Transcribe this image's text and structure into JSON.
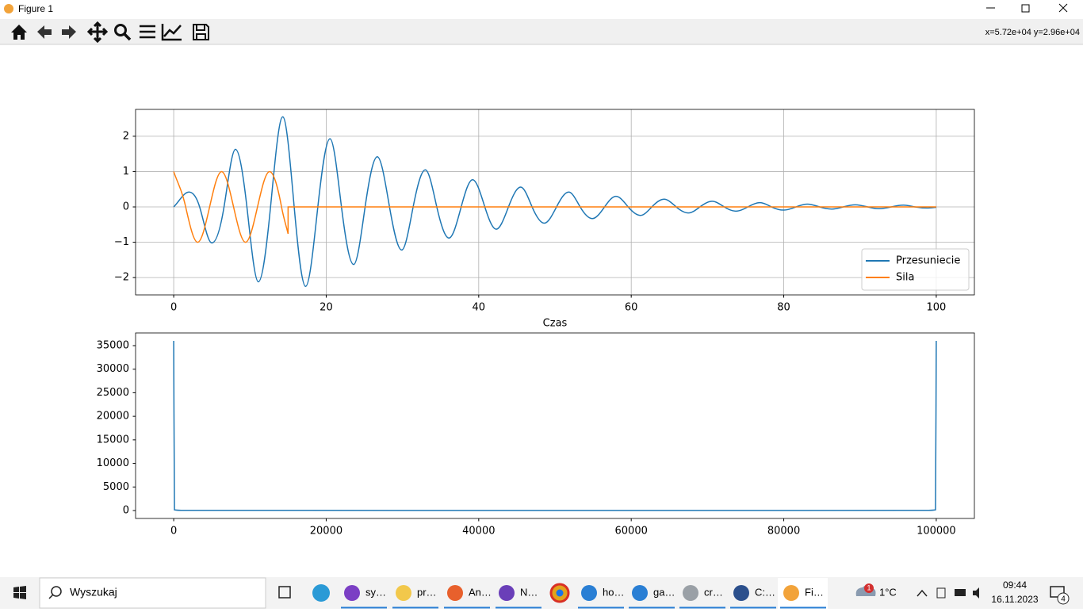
{
  "window": {
    "title": "Figure 1",
    "coords": "x=5.72e+04 y=2.96e+04"
  },
  "chart_data": [
    {
      "type": "line",
      "xlabel": "Czas",
      "grid": true,
      "legend": "lower right",
      "xlim": [
        -5,
        105
      ],
      "xticks": [
        0,
        20,
        40,
        60,
        80,
        100
      ],
      "ylim": [
        -2.49,
        2.76
      ],
      "yticks": [
        {
          "value": -2,
          "label": "−2"
        },
        {
          "value": -1,
          "label": "−1"
        },
        0,
        1,
        2
      ],
      "series": [
        {
          "name": "Przesuniecie",
          "color": "#1f77b4",
          "x": [
            0,
            2,
            3.4,
            5,
            6.6,
            8.1,
            9.6,
            11.1,
            12.7,
            14.3,
            15.8,
            17.3,
            18.9,
            20.5,
            22.0,
            23.6,
            25.1,
            26.7,
            28.3,
            29.9,
            31.4,
            33.0,
            34.5,
            36.1,
            37.7,
            39.2,
            40.8,
            42.3,
            43.9,
            45.5,
            47.0,
            48.6,
            50.2,
            51.8,
            53.3,
            54.9,
            56.5,
            58.0,
            59.6,
            61.2,
            62.7,
            64.3,
            65.9,
            67.5,
            69.0,
            70.6,
            72.2,
            73.7,
            75.3,
            76.9,
            78.4,
            80.0,
            81.6,
            83.1,
            84.7,
            86.3,
            87.8,
            89.4,
            91.0,
            92.5,
            94.1,
            95.7,
            97.2,
            98.8,
            100
          ],
          "values": [
            0,
            0.42,
            0,
            -1.02,
            0,
            1.63,
            0,
            -2.12,
            0,
            2.55,
            0,
            -2.25,
            0,
            1.93,
            0,
            -1.63,
            0,
            1.42,
            0,
            -1.22,
            0,
            1.05,
            0,
            -0.88,
            0,
            0.77,
            0,
            -0.63,
            0,
            0.56,
            0,
            -0.46,
            0,
            0.42,
            0,
            -0.33,
            0,
            0.3,
            0,
            -0.24,
            0,
            0.22,
            0,
            -0.17,
            0,
            0.16,
            0,
            -0.12,
            0,
            0.12,
            0,
            -0.09,
            0,
            0.08,
            0,
            -0.06,
            0,
            0.06,
            0,
            -0.05,
            0,
            0.05,
            0,
            -0.03,
            -0.01
          ]
        },
        {
          "name": "Sila",
          "color": "#ff7f0e",
          "x": [
            0,
            1.57,
            3.14,
            4.71,
            6.28,
            7.85,
            9.42,
            10.99,
            12.57,
            14.14,
            15,
            15,
            100
          ],
          "values": [
            1,
            0,
            -1,
            0,
            1,
            0,
            -1,
            0,
            1,
            0,
            -0.76,
            0,
            0
          ]
        }
      ]
    },
    {
      "type": "line",
      "grid": false,
      "xlim": [
        -5000,
        105000
      ],
      "xticks": [
        0,
        20000,
        40000,
        60000,
        80000,
        100000
      ],
      "ylim": [
        -1680,
        37690
      ],
      "yticks": [
        0,
        5000,
        10000,
        15000,
        20000,
        25000,
        30000,
        35000
      ],
      "series": [
        {
          "color": "#1f77b4",
          "x": [
            0,
            100,
            1000,
            50000,
            99000,
            99900,
            100000
          ],
          "values": [
            36000,
            150,
            50,
            20,
            50,
            150,
            36000
          ]
        }
      ]
    }
  ],
  "taskbar": {
    "search": "Wyszukaj",
    "apps": [
      "sy…",
      "pr…",
      "An…",
      "N…",
      "ho…",
      "ga…",
      "cr…",
      "C:…",
      "Fi…"
    ],
    "weather_badge": "1",
    "temperature": "1°C",
    "time": "09:44",
    "date": "16.11.2023",
    "notifications": "4"
  }
}
